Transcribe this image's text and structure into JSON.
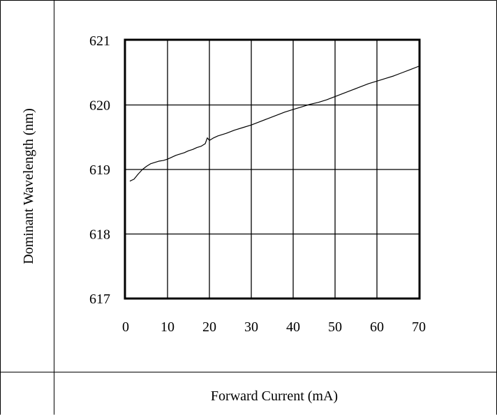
{
  "chart_data": {
    "type": "line",
    "title": "",
    "xlabel": "Forward Current (mA)",
    "ylabel": "Dominant Wavelength (nm)",
    "xlim": [
      0,
      70
    ],
    "ylim": [
      617,
      621
    ],
    "x_ticks": [
      0,
      10,
      20,
      30,
      40,
      50,
      60,
      70
    ],
    "y_ticks": [
      617,
      618,
      619,
      620,
      621
    ],
    "x_tick_labels": [
      "0",
      "10",
      "20",
      "30",
      "40",
      "50",
      "60",
      "70"
    ],
    "y_tick_labels": [
      "617",
      "618",
      "619",
      "620",
      "621"
    ],
    "grid": true,
    "legend": "none",
    "series": [
      {
        "x": [
          1,
          2,
          3,
          4,
          5,
          6,
          7,
          8,
          9,
          10,
          11,
          12,
          13,
          14,
          15,
          16,
          17,
          18,
          19,
          19.5,
          20,
          21,
          22,
          24,
          26,
          28,
          30,
          32,
          34,
          36,
          38,
          40,
          42,
          44,
          46,
          48,
          50,
          52,
          54,
          56,
          58,
          60,
          62,
          64,
          66,
          68,
          70
        ],
        "y": [
          618.82,
          618.85,
          618.93,
          619.0,
          619.05,
          619.09,
          619.11,
          619.13,
          619.14,
          619.16,
          619.19,
          619.22,
          619.24,
          619.26,
          619.29,
          619.31,
          619.34,
          619.36,
          619.4,
          619.49,
          619.45,
          619.49,
          619.52,
          619.56,
          619.61,
          619.65,
          619.69,
          619.74,
          619.79,
          619.84,
          619.89,
          619.93,
          619.97,
          620.01,
          620.04,
          620.08,
          620.13,
          620.18,
          620.23,
          620.28,
          620.33,
          620.37,
          620.41,
          620.45,
          620.5,
          620.55,
          620.6
        ]
      }
    ]
  }
}
